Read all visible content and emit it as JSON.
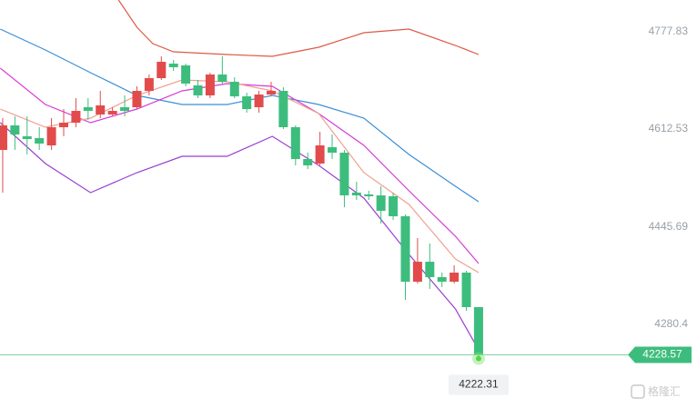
{
  "chart_data": {
    "type": "candlestick",
    "ylim": [
      4138.2,
      4831.9
    ],
    "xlim": [
      -0.22,
      56.9
    ],
    "yticks": [
      4777.83,
      4612.53,
      4445.69,
      4280.4
    ],
    "up_color": "#e24b4b",
    "down_color": "#3dbd7d",
    "open": [
      4577.0,
      4618.7,
      4600.2,
      4597.1,
      4584.7,
      4615.6,
      4623.3,
      4649.6,
      4637.2,
      4637.2,
      4649.6,
      4649.6,
      4677.4,
      4699.0,
      4723.7,
      4720.7,
      4686.7,
      4669.7,
      4705.2,
      4692.9,
      4668.1,
      4649.6,
      4671.2,
      4677.4,
      4615.6,
      4561.5,
      4553.8,
      4581.6,
      4572.3,
      4504.4,
      4501.3,
      4499.7,
      4498.2,
      4464.2,
      4352.9,
      4386.9,
      4360.7,
      4352.9,
      4368.4,
      4309.7
    ],
    "close": [
      4618.7,
      4603.2,
      4595.5,
      4587.8,
      4615.6,
      4623.3,
      4643.4,
      4643.4,
      4652.7,
      4643.4,
      4643.4,
      4677.4,
      4699.0,
      4726.8,
      4717.6,
      4689.8,
      4669.7,
      4705.2,
      4692.9,
      4668.1,
      4646.5,
      4671.2,
      4677.4,
      4615.6,
      4561.5,
      4550.7,
      4584.7,
      4572.3,
      4499.7,
      4499.7,
      4498.2,
      4473.5,
      4464.2,
      4352.9,
      4386.9,
      4360.7,
      4352.9,
      4368.4,
      4309.7,
      4228.57
    ],
    "high": [
      4631.0,
      4634.1,
      4634.1,
      4615.6,
      4631.0,
      4646.5,
      4665.0,
      4665.0,
      4677.4,
      4649.6,
      4669.7,
      4685.1,
      4705.2,
      4736.1,
      4729.9,
      4723.7,
      4695.9,
      4708.3,
      4736.1,
      4700.6,
      4674.3,
      4677.4,
      4692.9,
      4683.6,
      4618.7,
      4572.3,
      4607.9,
      4603.2,
      4577.0,
      4522.9,
      4507.5,
      4515.2,
      4504.4,
      4467.3,
      4427.1,
      4417.8,
      4368.4,
      4380.8,
      4371.5,
      4309.7
    ],
    "low": [
      4504.4,
      4577.0,
      4569.3,
      4577.0,
      4577.0,
      4600.2,
      4615.6,
      4628.0,
      4631.0,
      4634.1,
      4634.1,
      4646.5,
      4669.7,
      4695.9,
      4711.4,
      4685.1,
      4665.0,
      4665.0,
      4689.8,
      4665.0,
      4640.3,
      4640.3,
      4668.1,
      4612.5,
      4550.7,
      4544.5,
      4550.7,
      4561.5,
      4479.6,
      4492.0,
      4492.0,
      4451.8,
      4458.0,
      4322.1,
      4349.9,
      4340.6,
      4343.7,
      4349.9,
      4303.5,
      4222.31
    ],
    "lines": [
      {
        "color": "#dd5a44",
        "x": [
          9.5,
          11,
          12.3,
          14,
          18.4,
          22.1,
          25.9,
          29.6,
          33.3,
          37.1,
          39
        ],
        "values": [
          4831.9,
          4785.5,
          4757.7,
          4743.8,
          4739.2,
          4736.1,
          4751.6,
          4776.3,
          4782.5,
          4754.7,
          4739.2
        ]
      },
      {
        "color": "#3b8fd8",
        "x": [
          -0.2,
          3.5,
          7.2,
          11,
          14.7,
          18.4,
          22.1,
          25.9,
          29.6,
          33.3,
          37.1,
          39
        ],
        "values": [
          4782.5,
          4746.9,
          4708.3,
          4669.7,
          4654.2,
          4654.2,
          4669.7,
          4654.2,
          4631.1,
          4569.2,
          4515.2,
          4488.9
        ]
      },
      {
        "color": "#d63bd6",
        "x": [
          -0.2,
          3.5,
          7.2,
          11,
          14.7,
          18.4,
          22.1,
          25.9,
          29.6,
          33.3,
          37.1,
          39
        ],
        "values": [
          4716.0,
          4654.2,
          4623.3,
          4646.5,
          4677.4,
          4689.8,
          4685.1,
          4638.8,
          4584.7,
          4507.4,
          4430.2,
          4383.8
        ]
      },
      {
        "color": "#9a3fd0",
        "x": [
          -0.2,
          3.5,
          7.2,
          11,
          14.7,
          18.4,
          22.1,
          25.9,
          29.6,
          33.3,
          37.1,
          39
        ],
        "values": [
          4623.3,
          4553.8,
          4504.4,
          4538.4,
          4566.2,
          4566.2,
          4600.2,
          4550.7,
          4495.1,
          4399.3,
          4306.6,
          4237.1
        ]
      },
      {
        "color": "#f0a090",
        "x": [
          -0.2,
          3.5,
          7.2,
          11,
          14.7,
          18.4,
          22.1,
          25.9,
          29.6,
          33.3,
          37.1,
          39
        ],
        "values": [
          4646.5,
          4615.6,
          4631.1,
          4669.7,
          4695.9,
          4692.9,
          4677.4,
          4638.8,
          4538.3,
          4484.3,
          4391.6,
          4368.4
        ]
      }
    ],
    "current_price": {
      "value": 4228.57,
      "label": "4228.57"
    },
    "low_marker": {
      "value": 4222.31,
      "label": "4222.31"
    },
    "watermark": "格隆汇"
  }
}
